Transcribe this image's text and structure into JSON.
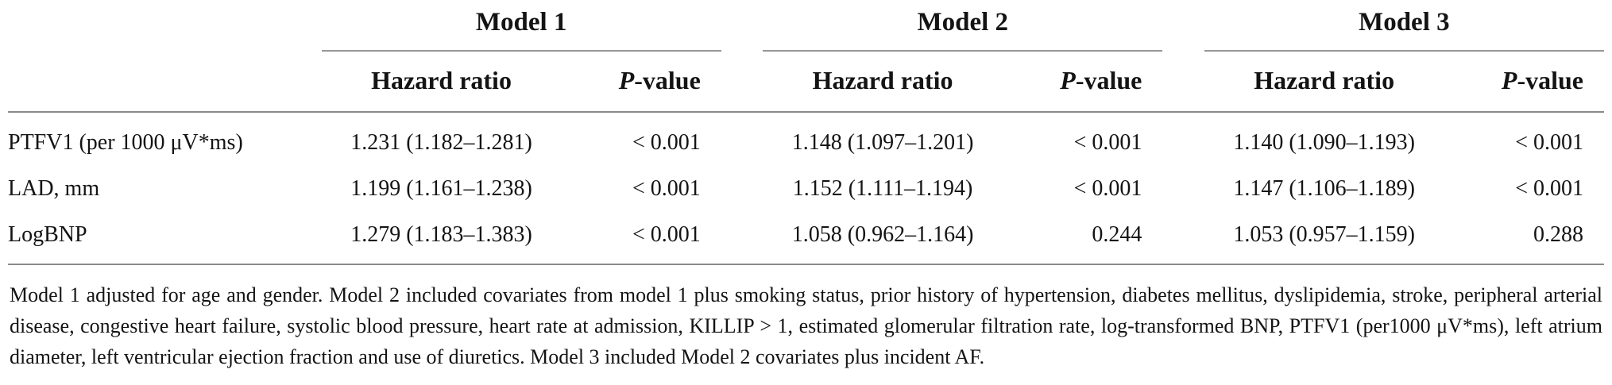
{
  "colors": {
    "background": "#ffffff",
    "text": "#141414",
    "rule": "#8a8a8a"
  },
  "table": {
    "col_groups": [
      {
        "label": "Model 1"
      },
      {
        "label": "Model 2"
      },
      {
        "label": "Model 3"
      }
    ],
    "sub_headers": {
      "hazard_ratio": "Hazard ratio",
      "p_italic": "P",
      "p_suffix": "-value"
    },
    "rows": [
      {
        "label": "PTFV1 (per 1000 μV*ms)",
        "m1_hr": "1.231 (1.182–1.281)",
        "m1_p": "< 0.001",
        "m2_hr": "1.148 (1.097–1.201)",
        "m2_p": "< 0.001",
        "m3_hr": "1.140 (1.090–1.193)",
        "m3_p": "< 0.001"
      },
      {
        "label": "LAD, mm",
        "m1_hr": "1.199 (1.161–1.238)",
        "m1_p": "< 0.001",
        "m2_hr": "1.152 (1.111–1.194)",
        "m2_p": "< 0.001",
        "m3_hr": "1.147 (1.106–1.189)",
        "m3_p": "< 0.001"
      },
      {
        "label": "LogBNP",
        "m1_hr": "1.279 (1.183–1.383)",
        "m1_p": "< 0.001",
        "m2_hr": "1.058 (0.962–1.164)",
        "m2_p": "0.244",
        "m3_hr": "1.053 (0.957–1.159)",
        "m3_p": "0.288"
      }
    ],
    "footnote": "Model 1 adjusted for age and gender. Model 2 included covariates from model 1 plus smoking status, prior history of hypertension, diabetes mellitus, dyslipidemia, stroke, peripheral arterial disease, congestive heart failure, systolic blood pressure, heart rate at admission, KILLIP > 1, estimated glomerular filtration rate, log-transformed BNP, PTFV1 (per1000 μV*ms), left atrium diameter, left ventricular ejection fraction and use of diuretics. Model 3 included Model 2 covariates plus incident AF."
  }
}
